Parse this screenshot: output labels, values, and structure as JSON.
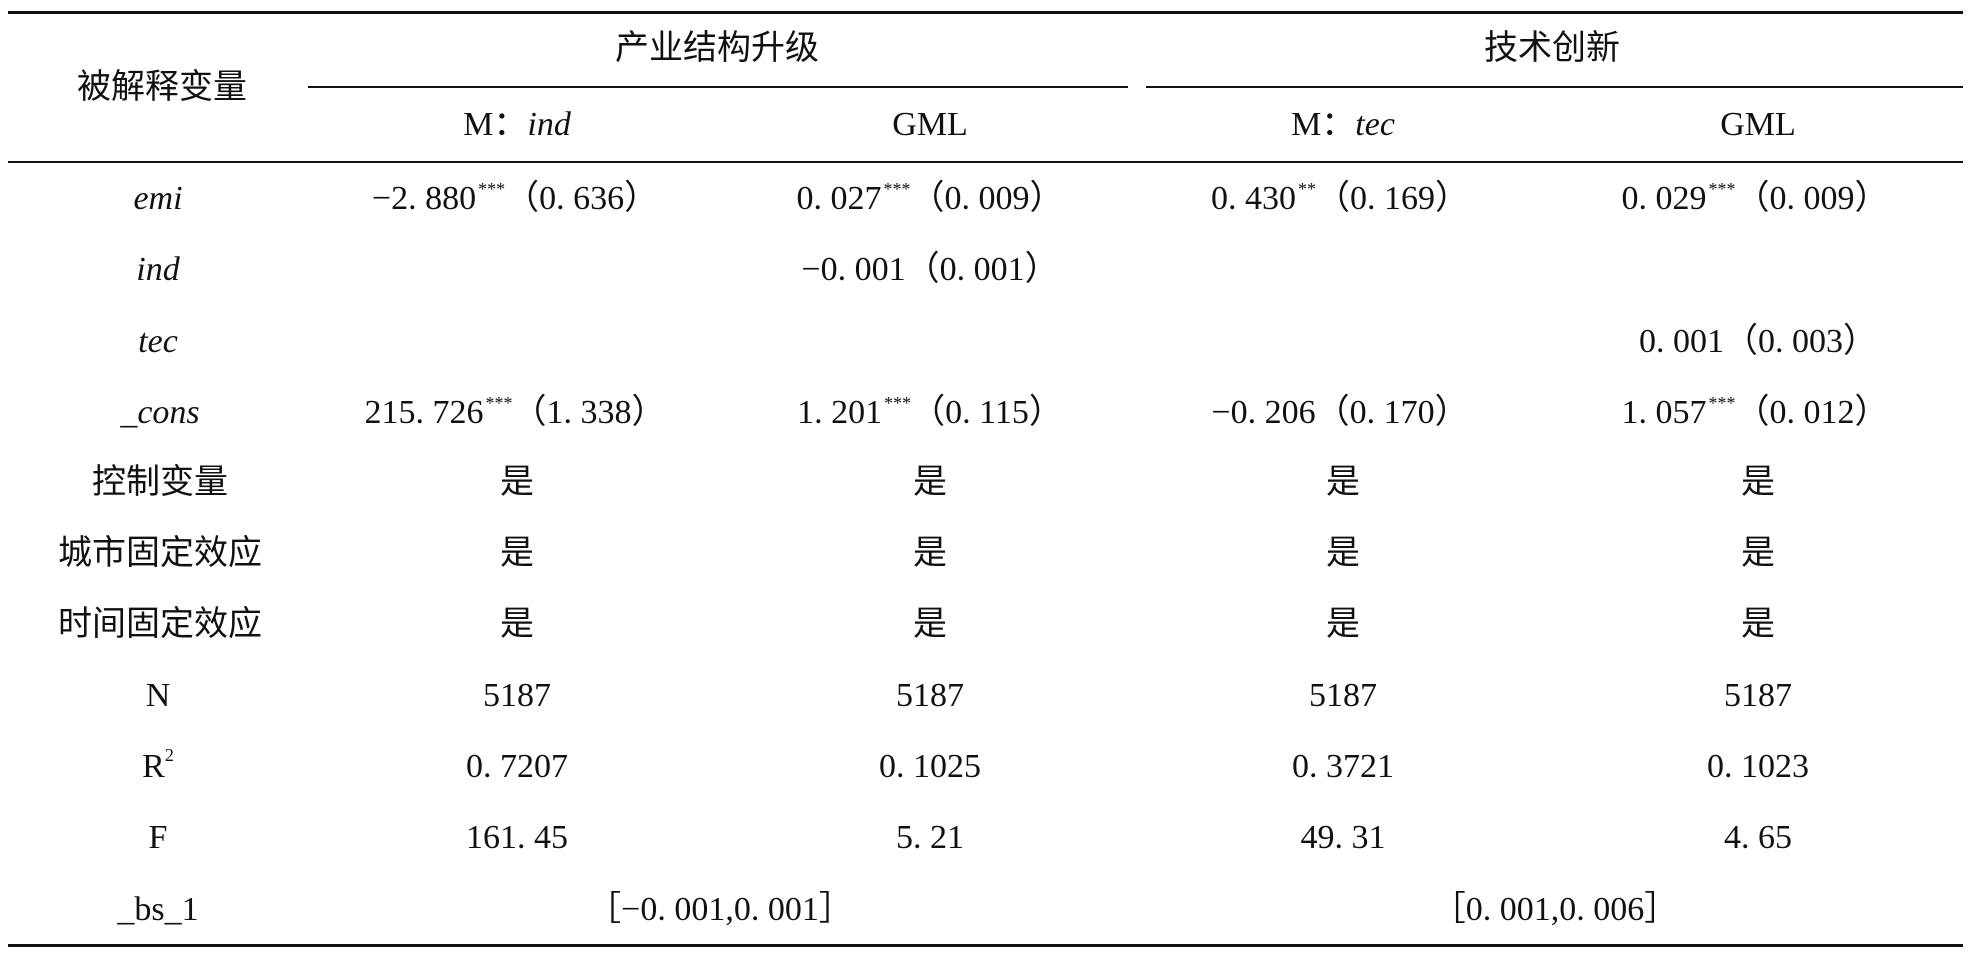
{
  "table": {
    "header": {
      "row_label": "被解释变量",
      "group1": "产业结构升级",
      "group2": "技术创新",
      "col1_prefix": "M：",
      "col1_var": "ind",
      "col2": "GML",
      "col3_prefix": "M：",
      "col3_var": "tec",
      "col4": "GML"
    },
    "rows": [
      {
        "label": "emi",
        "c1": "−2. 880",
        "c1_sig": "***",
        "c1_se": "（0. 636）",
        "c2": "0. 027",
        "c2_sig": "***",
        "c2_se": "（0. 009）",
        "c3": "0. 430",
        "c3_sig": "**",
        "c3_se": "（0. 169）",
        "c4": "0. 029",
        "c4_sig": "***",
        "c4_se": "（0. 009）"
      },
      {
        "label": "ind",
        "c2": "−0. 001（0. 001）"
      },
      {
        "label": "tec",
        "c4": "0. 001（0. 003）"
      },
      {
        "label": "_cons",
        "c1": "215. 726",
        "c1_sig": "***",
        "c1_se": "（1. 338）",
        "c2": "1. 201",
        "c2_sig": "***",
        "c2_se": "（0. 115）",
        "c3": "−0. 206（0. 170）",
        "c4": "1. 057",
        "c4_sig": "***",
        "c4_se": "（0. 012）"
      },
      {
        "label": "控制变量",
        "c1": "是",
        "c2": "是",
        "c3": "是",
        "c4": "是"
      },
      {
        "label": "城市固定效应",
        "c1": "是",
        "c2": "是",
        "c3": "是",
        "c4": "是"
      },
      {
        "label": "时间固定效应",
        "c1": "是",
        "c2": "是",
        "c3": "是",
        "c4": "是"
      },
      {
        "label": "N",
        "c1": "5187",
        "c2": "5187",
        "c3": "5187",
        "c4": "5187"
      },
      {
        "label": "R",
        "label_sup": "2",
        "c1": "0. 7207",
        "c2": "0. 1025",
        "c3": "0. 3721",
        "c4": "0. 1023"
      },
      {
        "label": "F",
        "c1": "161. 45",
        "c2": "5. 21",
        "c3": "49. 31",
        "c4": "4. 65"
      },
      {
        "label": "_bs_1",
        "g1": "［−0. 001,0. 001］",
        "g2": "［0. 001,0. 006］"
      }
    ]
  }
}
